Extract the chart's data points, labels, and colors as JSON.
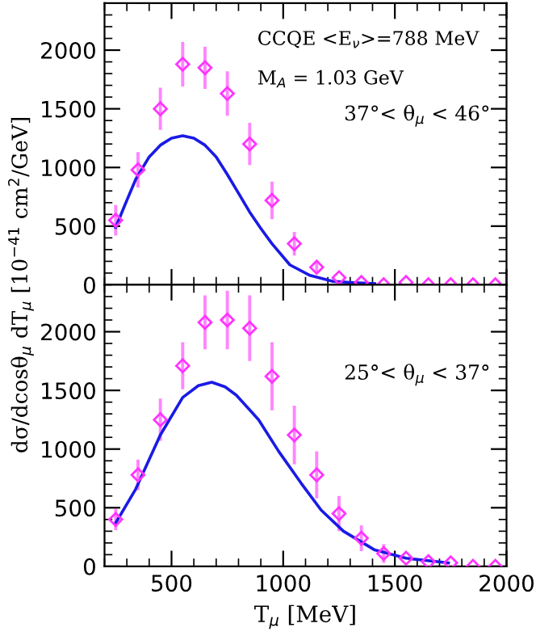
{
  "chart_data": [
    {
      "type": "scatter",
      "ylabel": "dσ/dcosθ$_{μ}$ dT$_{μ}$ [10$^{−41}$ cm$^{2}$/GeV]",
      "annotations": [
        "CCQE <E$_{ν}$>=788 MeV",
        "M$_{A}$ = 1.03 GeV",
        "37°< θ$_{μ}$ < 46°"
      ],
      "xlim": [
        200,
        2000
      ],
      "xticks": [
        500,
        1000,
        1500,
        2000
      ],
      "ylim": [
        0,
        2400
      ],
      "yticks": [
        0,
        500,
        1000,
        1500,
        2000
      ],
      "tick_labels": "y",
      "grid": false,
      "legend": false,
      "series": [
        {
          "color": "#ff33ff",
          "marker": "diamond",
          "x": [
            250,
            350,
            450,
            550,
            650,
            750,
            850,
            950,
            1050,
            1150,
            1250,
            1350,
            1450,
            1550,
            1650,
            1750,
            1850,
            1950
          ],
          "values": [
            550,
            980,
            1500,
            1880,
            1850,
            1630,
            1200,
            720,
            350,
            150,
            60,
            20,
            0,
            20,
            0,
            0,
            0,
            0
          ],
          "errors": [
            130,
            150,
            180,
            190,
            180,
            190,
            180,
            160,
            100,
            50,
            null,
            null,
            null,
            null,
            null,
            null,
            null,
            null
          ]
        },
        {
          "type": "line",
          "color": "#1a1ae6",
          "line_style": "solid",
          "x": [
            250,
            300,
            340,
            400,
            450,
            500,
            550,
            600,
            650,
            700,
            750,
            800,
            850,
            900,
            950,
            1030,
            1120,
            1220,
            1300,
            1410
          ],
          "values": [
            490,
            720,
            900,
            1090,
            1190,
            1250,
            1270,
            1250,
            1190,
            1090,
            940,
            780,
            620,
            480,
            350,
            170,
            80,
            30,
            20,
            10
          ]
        }
      ]
    },
    {
      "type": "scatter",
      "xlabel": "T$_{μ}$ [MeV]",
      "annotations": [
        "25°< θ$_{μ}$ < 37°"
      ],
      "xlim": [
        200,
        2000
      ],
      "xticks": [
        500,
        1000,
        1500,
        2000
      ],
      "ylim": [
        0,
        2400
      ],
      "yticks": [
        0,
        500,
        1000,
        1500,
        2000
      ],
      "grid": false,
      "legend": false,
      "series": [
        {
          "color": "#ff33ff",
          "marker": "diamond",
          "x": [
            250,
            350,
            450,
            550,
            650,
            750,
            850,
            950,
            1050,
            1150,
            1250,
            1350,
            1450,
            1550,
            1650,
            1750,
            1850,
            1950
          ],
          "values": [
            400,
            780,
            1250,
            1710,
            2080,
            2100,
            2030,
            1620,
            1120,
            780,
            450,
            240,
            110,
            70,
            40,
            30,
            0,
            0
          ],
          "errors": [
            90,
            130,
            180,
            200,
            230,
            250,
            280,
            290,
            250,
            200,
            150,
            110,
            80,
            null,
            null,
            null,
            null,
            null
          ]
        },
        {
          "type": "line",
          "color": "#1a1ae6",
          "line_style": "solid",
          "x": [
            250,
            340,
            450,
            550,
            620,
            680,
            740,
            790,
            890,
            980,
            1080,
            1170,
            1270,
            1410,
            1550,
            1740
          ],
          "values": [
            370,
            660,
            1120,
            1440,
            1540,
            1570,
            1530,
            1460,
            1250,
            980,
            710,
            480,
            300,
            140,
            70,
            30
          ]
        }
      ]
    }
  ]
}
